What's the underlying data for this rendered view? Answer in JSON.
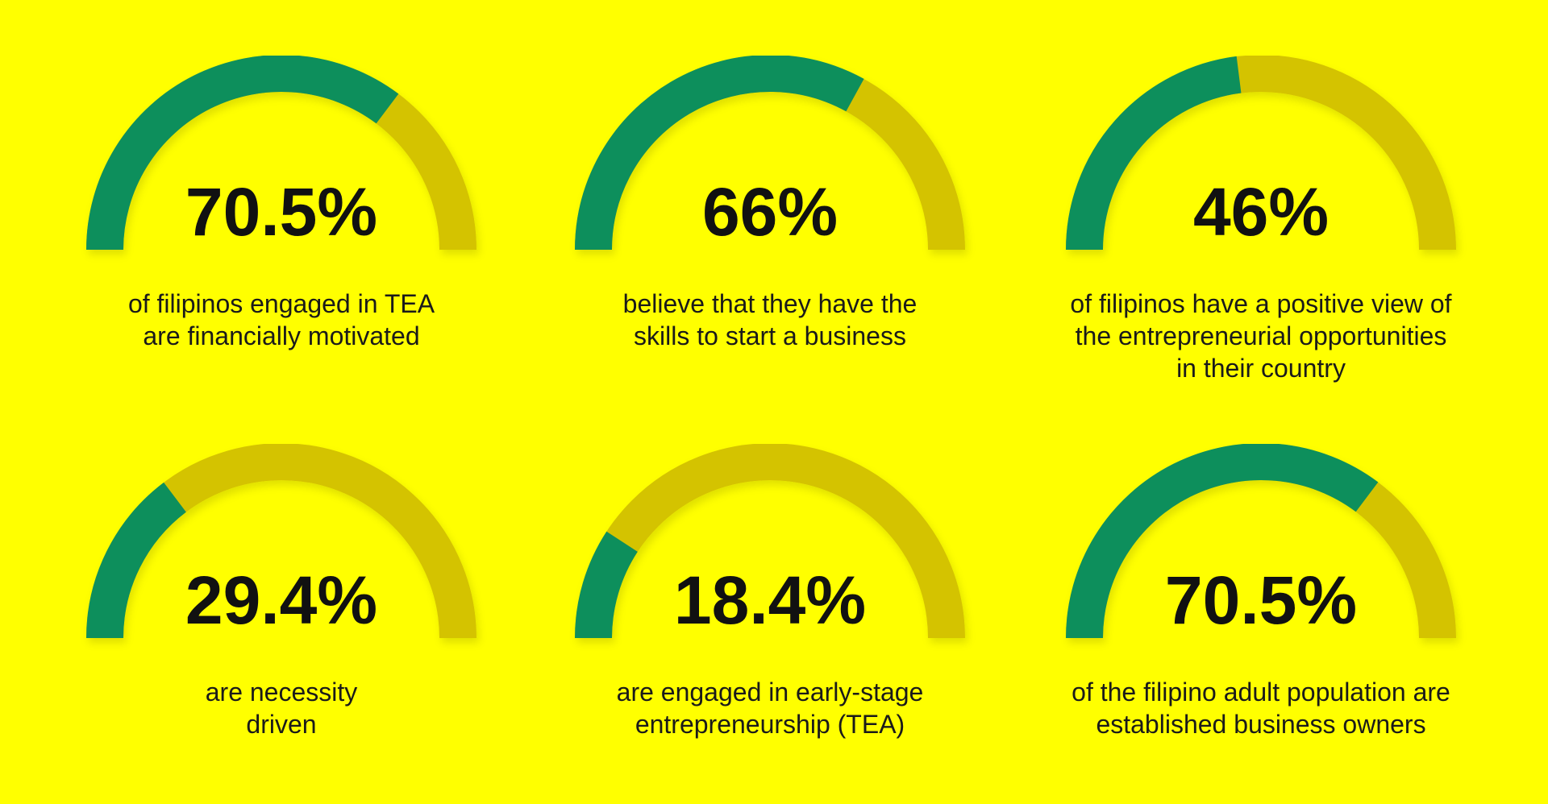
{
  "chart_data": [
    {
      "type": "gauge",
      "values": [
        70.5
      ],
      "value_labels": [
        "70.5%"
      ],
      "ylim": [
        0,
        100
      ],
      "color": "#0a8f5c",
      "track_color": "#d4c300",
      "caption": [
        "of filipinos engaged in TEA",
        "are financially motivated"
      ]
    },
    {
      "type": "gauge",
      "values": [
        66
      ],
      "value_labels": [
        "66%"
      ],
      "ylim": [
        0,
        100
      ],
      "color": "#0a8f5c",
      "track_color": "#d4c300",
      "caption": [
        "believe that they have the",
        "skills to start a business"
      ]
    },
    {
      "type": "gauge",
      "values": [
        46
      ],
      "value_labels": [
        "46%"
      ],
      "ylim": [
        0,
        100
      ],
      "color": "#0a8f5c",
      "track_color": "#d4c300",
      "caption": [
        "of filipinos have a positive view of",
        "the entrepreneurial opportunities",
        "in their country"
      ]
    },
    {
      "type": "gauge",
      "values": [
        29.4
      ],
      "value_labels": [
        "29.4%"
      ],
      "ylim": [
        0,
        100
      ],
      "color": "#0a8f5c",
      "track_color": "#d4c300",
      "caption": [
        "are necessity",
        "driven"
      ]
    },
    {
      "type": "gauge",
      "values": [
        18.4
      ],
      "value_labels": [
        "18.4%"
      ],
      "ylim": [
        0,
        100
      ],
      "color": "#0a8f5c",
      "track_color": "#d4c300",
      "caption": [
        "are engaged in early-stage",
        "entrepreneurship (TEA)"
      ]
    },
    {
      "type": "gauge",
      "values": [
        70.5
      ],
      "value_labels": [
        "70.5%"
      ],
      "ylim": [
        0,
        100
      ],
      "color": "#0a8f5c",
      "track_color": "#d4c300",
      "caption": [
        "of the filipino adult population are",
        "established business owners"
      ]
    }
  ]
}
